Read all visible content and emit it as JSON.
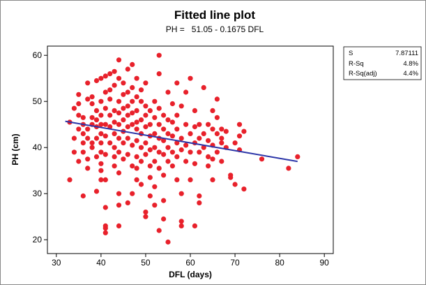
{
  "chart_data": {
    "type": "scatter",
    "title": "Fitted line plot",
    "subtitle": "PH =   51.05 - 0.1675 DFL",
    "xlabel": "DFL (days)",
    "ylabel": "PH (cm)",
    "xlim": [
      28,
      92
    ],
    "ylim": [
      17,
      62
    ],
    "xticks": [
      30,
      40,
      50,
      60,
      70,
      80,
      90
    ],
    "yticks": [
      20,
      30,
      40,
      50,
      60
    ],
    "grid": false,
    "colors": {
      "points": "#e8212b",
      "fit_line": "#2b35a8"
    },
    "fit": {
      "intercept": 51.05,
      "slope": -0.1675,
      "x_range": [
        32,
        84
      ]
    },
    "stats": [
      {
        "label": "S",
        "value": "7.87111"
      },
      {
        "label": "R-Sq",
        "value": "4.8%"
      },
      {
        "label": "R-Sq(adj)",
        "value": "4.4%"
      }
    ],
    "points": [
      [
        33,
        45.5
      ],
      [
        33,
        33
      ],
      [
        34,
        42
      ],
      [
        34,
        39
      ],
      [
        34,
        48.5
      ],
      [
        35,
        47
      ],
      [
        35,
        44
      ],
      [
        35,
        49.5
      ],
      [
        35,
        37
      ],
      [
        35,
        51.5
      ],
      [
        36,
        45
      ],
      [
        36,
        41
      ],
      [
        36,
        39
      ],
      [
        36,
        29.5
      ],
      [
        36,
        43
      ],
      [
        36,
        46.5
      ],
      [
        37,
        44
      ],
      [
        37,
        50.5
      ],
      [
        37,
        42
      ],
      [
        37,
        54
      ],
      [
        37,
        37.5
      ],
      [
        37,
        35.5
      ],
      [
        38,
        45
      ],
      [
        38,
        49.5
      ],
      [
        38,
        46.5
      ],
      [
        38,
        41
      ],
      [
        38,
        40
      ],
      [
        38,
        51
      ],
      [
        39,
        48
      ],
      [
        39,
        44.5
      ],
      [
        39,
        54.5
      ],
      [
        39,
        42
      ],
      [
        39,
        46
      ],
      [
        39,
        38
      ],
      [
        39,
        30.5
      ],
      [
        40,
        50
      ],
      [
        40,
        47
      ],
      [
        40,
        43
      ],
      [
        40,
        55
      ],
      [
        40,
        45
      ],
      [
        40,
        41
      ],
      [
        40,
        39
      ],
      [
        40,
        36.5
      ],
      [
        40,
        35
      ],
      [
        40,
        33
      ],
      [
        41,
        52
      ],
      [
        41,
        48.5
      ],
      [
        41,
        45
      ],
      [
        41,
        42.5
      ],
      [
        41,
        55.5
      ],
      [
        41,
        38.5
      ],
      [
        41,
        33
      ],
      [
        41,
        27
      ],
      [
        41,
        22.5
      ],
      [
        41,
        21.5
      ],
      [
        41,
        23
      ],
      [
        42,
        50.5
      ],
      [
        42,
        47
      ],
      [
        42,
        44.5
      ],
      [
        42,
        41
      ],
      [
        42,
        56
      ],
      [
        42,
        52.5
      ],
      [
        43,
        48
      ],
      [
        43,
        45.5
      ],
      [
        43,
        43
      ],
      [
        43,
        53.5
      ],
      [
        43,
        40
      ],
      [
        43,
        38
      ],
      [
        43,
        36
      ],
      [
        43,
        56.5
      ],
      [
        44,
        50
      ],
      [
        44,
        47.5
      ],
      [
        44,
        45
      ],
      [
        44,
        42
      ],
      [
        44,
        55
      ],
      [
        44,
        59
      ],
      [
        44,
        39
      ],
      [
        44,
        34.5
      ],
      [
        44,
        30
      ],
      [
        44,
        23
      ],
      [
        44,
        27.5
      ],
      [
        45,
        51.5
      ],
      [
        45,
        48.5
      ],
      [
        45,
        46
      ],
      [
        45,
        43.5
      ],
      [
        45,
        54
      ],
      [
        45,
        41
      ],
      [
        45,
        37.5
      ],
      [
        46,
        52
      ],
      [
        46,
        49
      ],
      [
        46,
        47
      ],
      [
        46,
        44.5
      ],
      [
        46,
        57
      ],
      [
        46,
        42
      ],
      [
        46,
        38.5
      ],
      [
        46,
        28
      ],
      [
        47,
        50
      ],
      [
        47,
        47.5
      ],
      [
        47,
        45
      ],
      [
        47,
        53
      ],
      [
        47,
        40.5
      ],
      [
        47,
        36
      ],
      [
        47,
        58
      ],
      [
        47,
        30
      ],
      [
        48,
        51
      ],
      [
        48,
        48
      ],
      [
        48,
        45.5
      ],
      [
        48,
        44
      ],
      [
        48,
        41.5
      ],
      [
        48,
        55
      ],
      [
        48,
        38
      ],
      [
        48,
        35.5
      ],
      [
        48,
        33
      ],
      [
        49,
        46
      ],
      [
        49,
        43
      ],
      [
        49,
        50
      ],
      [
        49,
        40
      ],
      [
        49,
        37
      ],
      [
        49,
        52.5
      ],
      [
        49,
        32
      ],
      [
        50,
        47
      ],
      [
        50,
        44.5
      ],
      [
        50,
        49
      ],
      [
        50,
        41
      ],
      [
        50,
        38.5
      ],
      [
        50,
        54
      ],
      [
        50,
        26
      ],
      [
        50,
        25
      ],
      [
        51,
        45
      ],
      [
        51,
        42.5
      ],
      [
        51,
        48
      ],
      [
        51,
        39.5
      ],
      [
        51,
        36
      ],
      [
        51,
        33.5
      ],
      [
        51,
        29.5
      ],
      [
        52,
        46.5
      ],
      [
        52,
        43
      ],
      [
        52,
        50
      ],
      [
        52,
        40
      ],
      [
        52,
        37
      ],
      [
        52,
        31.5
      ],
      [
        52,
        27.5
      ],
      [
        53,
        45
      ],
      [
        53,
        42
      ],
      [
        53,
        48.5
      ],
      [
        53,
        39
      ],
      [
        53,
        56
      ],
      [
        53,
        35.5
      ],
      [
        53,
        60
      ],
      [
        53,
        22
      ],
      [
        54,
        44
      ],
      [
        54,
        41.5
      ],
      [
        54,
        47
      ],
      [
        54,
        38.5
      ],
      [
        54,
        34
      ],
      [
        54,
        28.5
      ],
      [
        54,
        24.5
      ],
      [
        55,
        43
      ],
      [
        55,
        40
      ],
      [
        55,
        46
      ],
      [
        55,
        37
      ],
      [
        55,
        52
      ],
      [
        55,
        19.5
      ],
      [
        56,
        45.5
      ],
      [
        56,
        42.5
      ],
      [
        56,
        39
      ],
      [
        56,
        49.5
      ],
      [
        56,
        36
      ],
      [
        57,
        44
      ],
      [
        57,
        41
      ],
      [
        57,
        47
      ],
      [
        57,
        38
      ],
      [
        57,
        54
      ],
      [
        57,
        33
      ],
      [
        58,
        42
      ],
      [
        58,
        49
      ],
      [
        58,
        39.5
      ],
      [
        58,
        30
      ],
      [
        58,
        24
      ],
      [
        58,
        23
      ],
      [
        59,
        45
      ],
      [
        59,
        40.5
      ],
      [
        59,
        52
      ],
      [
        59,
        37
      ],
      [
        60,
        43
      ],
      [
        60,
        55
      ],
      [
        60,
        39
      ],
      [
        60,
        33
      ],
      [
        61,
        44.5
      ],
      [
        61,
        41
      ],
      [
        61,
        48
      ],
      [
        61,
        36.5
      ],
      [
        61,
        23
      ],
      [
        62,
        42
      ],
      [
        62,
        45
      ],
      [
        62,
        39
      ],
      [
        62,
        29.5
      ],
      [
        62,
        28
      ],
      [
        63,
        43
      ],
      [
        63,
        40
      ],
      [
        63,
        53
      ],
      [
        64,
        41.5
      ],
      [
        64,
        45
      ],
      [
        64,
        38
      ],
      [
        64,
        36
      ],
      [
        65,
        44
      ],
      [
        65,
        40.5
      ],
      [
        65,
        48
      ],
      [
        65,
        37.5
      ],
      [
        65,
        33
      ],
      [
        66,
        43
      ],
      [
        66,
        46.5
      ],
      [
        66,
        39
      ],
      [
        66,
        50.5
      ],
      [
        67,
        42
      ],
      [
        67,
        44
      ],
      [
        67,
        41
      ],
      [
        67,
        37
      ],
      [
        68,
        43.5
      ],
      [
        68,
        40
      ],
      [
        69,
        34
      ],
      [
        69,
        33.5
      ],
      [
        70,
        32
      ],
      [
        70,
        41
      ],
      [
        71,
        45
      ],
      [
        71,
        42.5
      ],
      [
        71,
        39.5
      ],
      [
        72,
        43.5
      ],
      [
        72,
        31
      ],
      [
        76,
        37.5
      ],
      [
        82,
        35.5
      ],
      [
        84,
        38
      ]
    ]
  }
}
